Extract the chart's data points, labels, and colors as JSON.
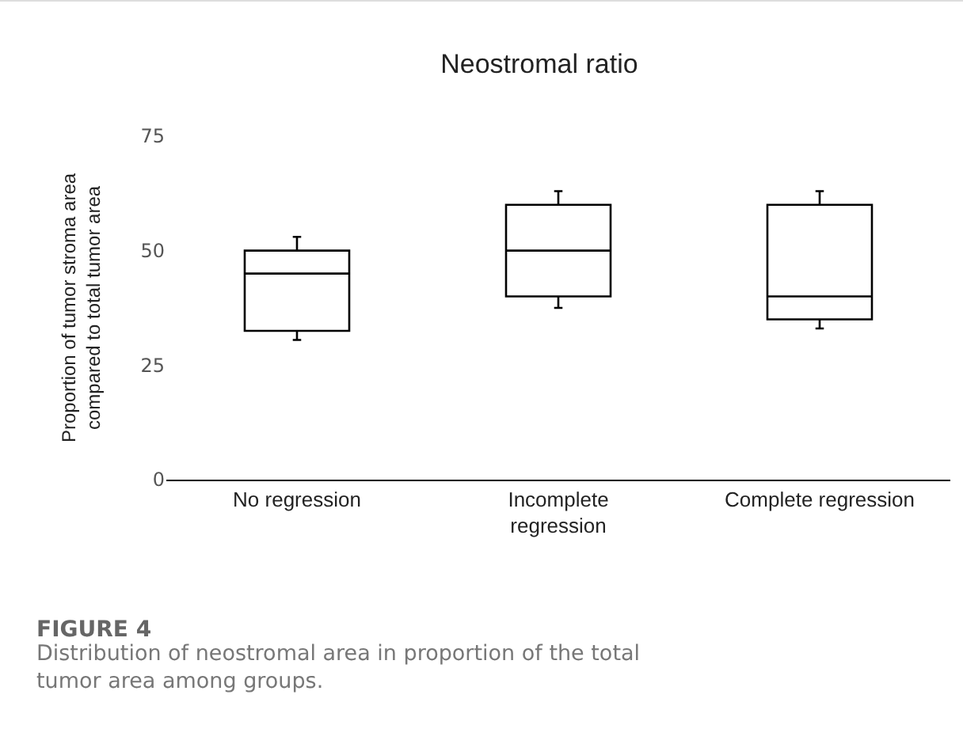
{
  "chart_data": {
    "type": "box",
    "title": "Neostromal ratio",
    "ylabel": "Proportion of tumor stroma area\ncompared to total tumor area",
    "categories": [
      "No regression",
      "Incomplete\nregression",
      "Complete regression"
    ],
    "boxes": [
      {
        "low": 30.5,
        "q1": 32.5,
        "median": 45,
        "q3": 50,
        "high": 53
      },
      {
        "low": 37.5,
        "q1": 40,
        "median": 50,
        "q3": 60,
        "high": 63
      },
      {
        "low": 33,
        "q1": 35,
        "median": 40,
        "q3": 60,
        "high": 63
      }
    ],
    "color": "#000000",
    "ylim": [
      0,
      75
    ],
    "yticks": [
      0,
      25,
      50,
      75
    ],
    "grid": false,
    "annotations": [
      "FIGURE 4",
      "Distribution of neostromal area in proportion of the total\ntumor area among groups."
    ]
  }
}
